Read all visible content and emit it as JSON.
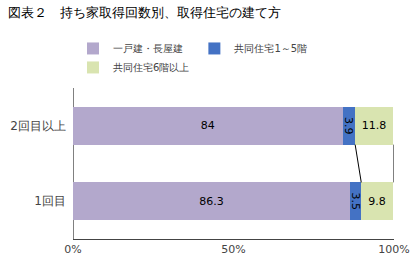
{
  "chart_data": {
    "type": "bar",
    "orientation": "horizontal",
    "stacked": true,
    "title": "図表２　持ち家取得回数別、取得住宅の建て方",
    "categories": [
      "2回目以上",
      "1回目"
    ],
    "series": [
      {
        "name": "一戸建・長屋建",
        "color": "#b3a8cc",
        "values": [
          84.0,
          86.3
        ]
      },
      {
        "name": "共同住宅1～5階",
        "color": "#4472c4",
        "values": [
          3.9,
          3.5
        ]
      },
      {
        "name": "共同住宅6階以上",
        "color": "#d9e4b0",
        "values": [
          11.8,
          9.8
        ]
      }
    ],
    "xlim": [
      0,
      100
    ],
    "xticks": [
      {
        "value": 0,
        "label": "0%"
      },
      {
        "value": 50,
        "label": "50%"
      },
      {
        "value": 100,
        "label": "100%"
      }
    ],
    "data_labels": true,
    "grid": false,
    "legend": "upper left"
  }
}
